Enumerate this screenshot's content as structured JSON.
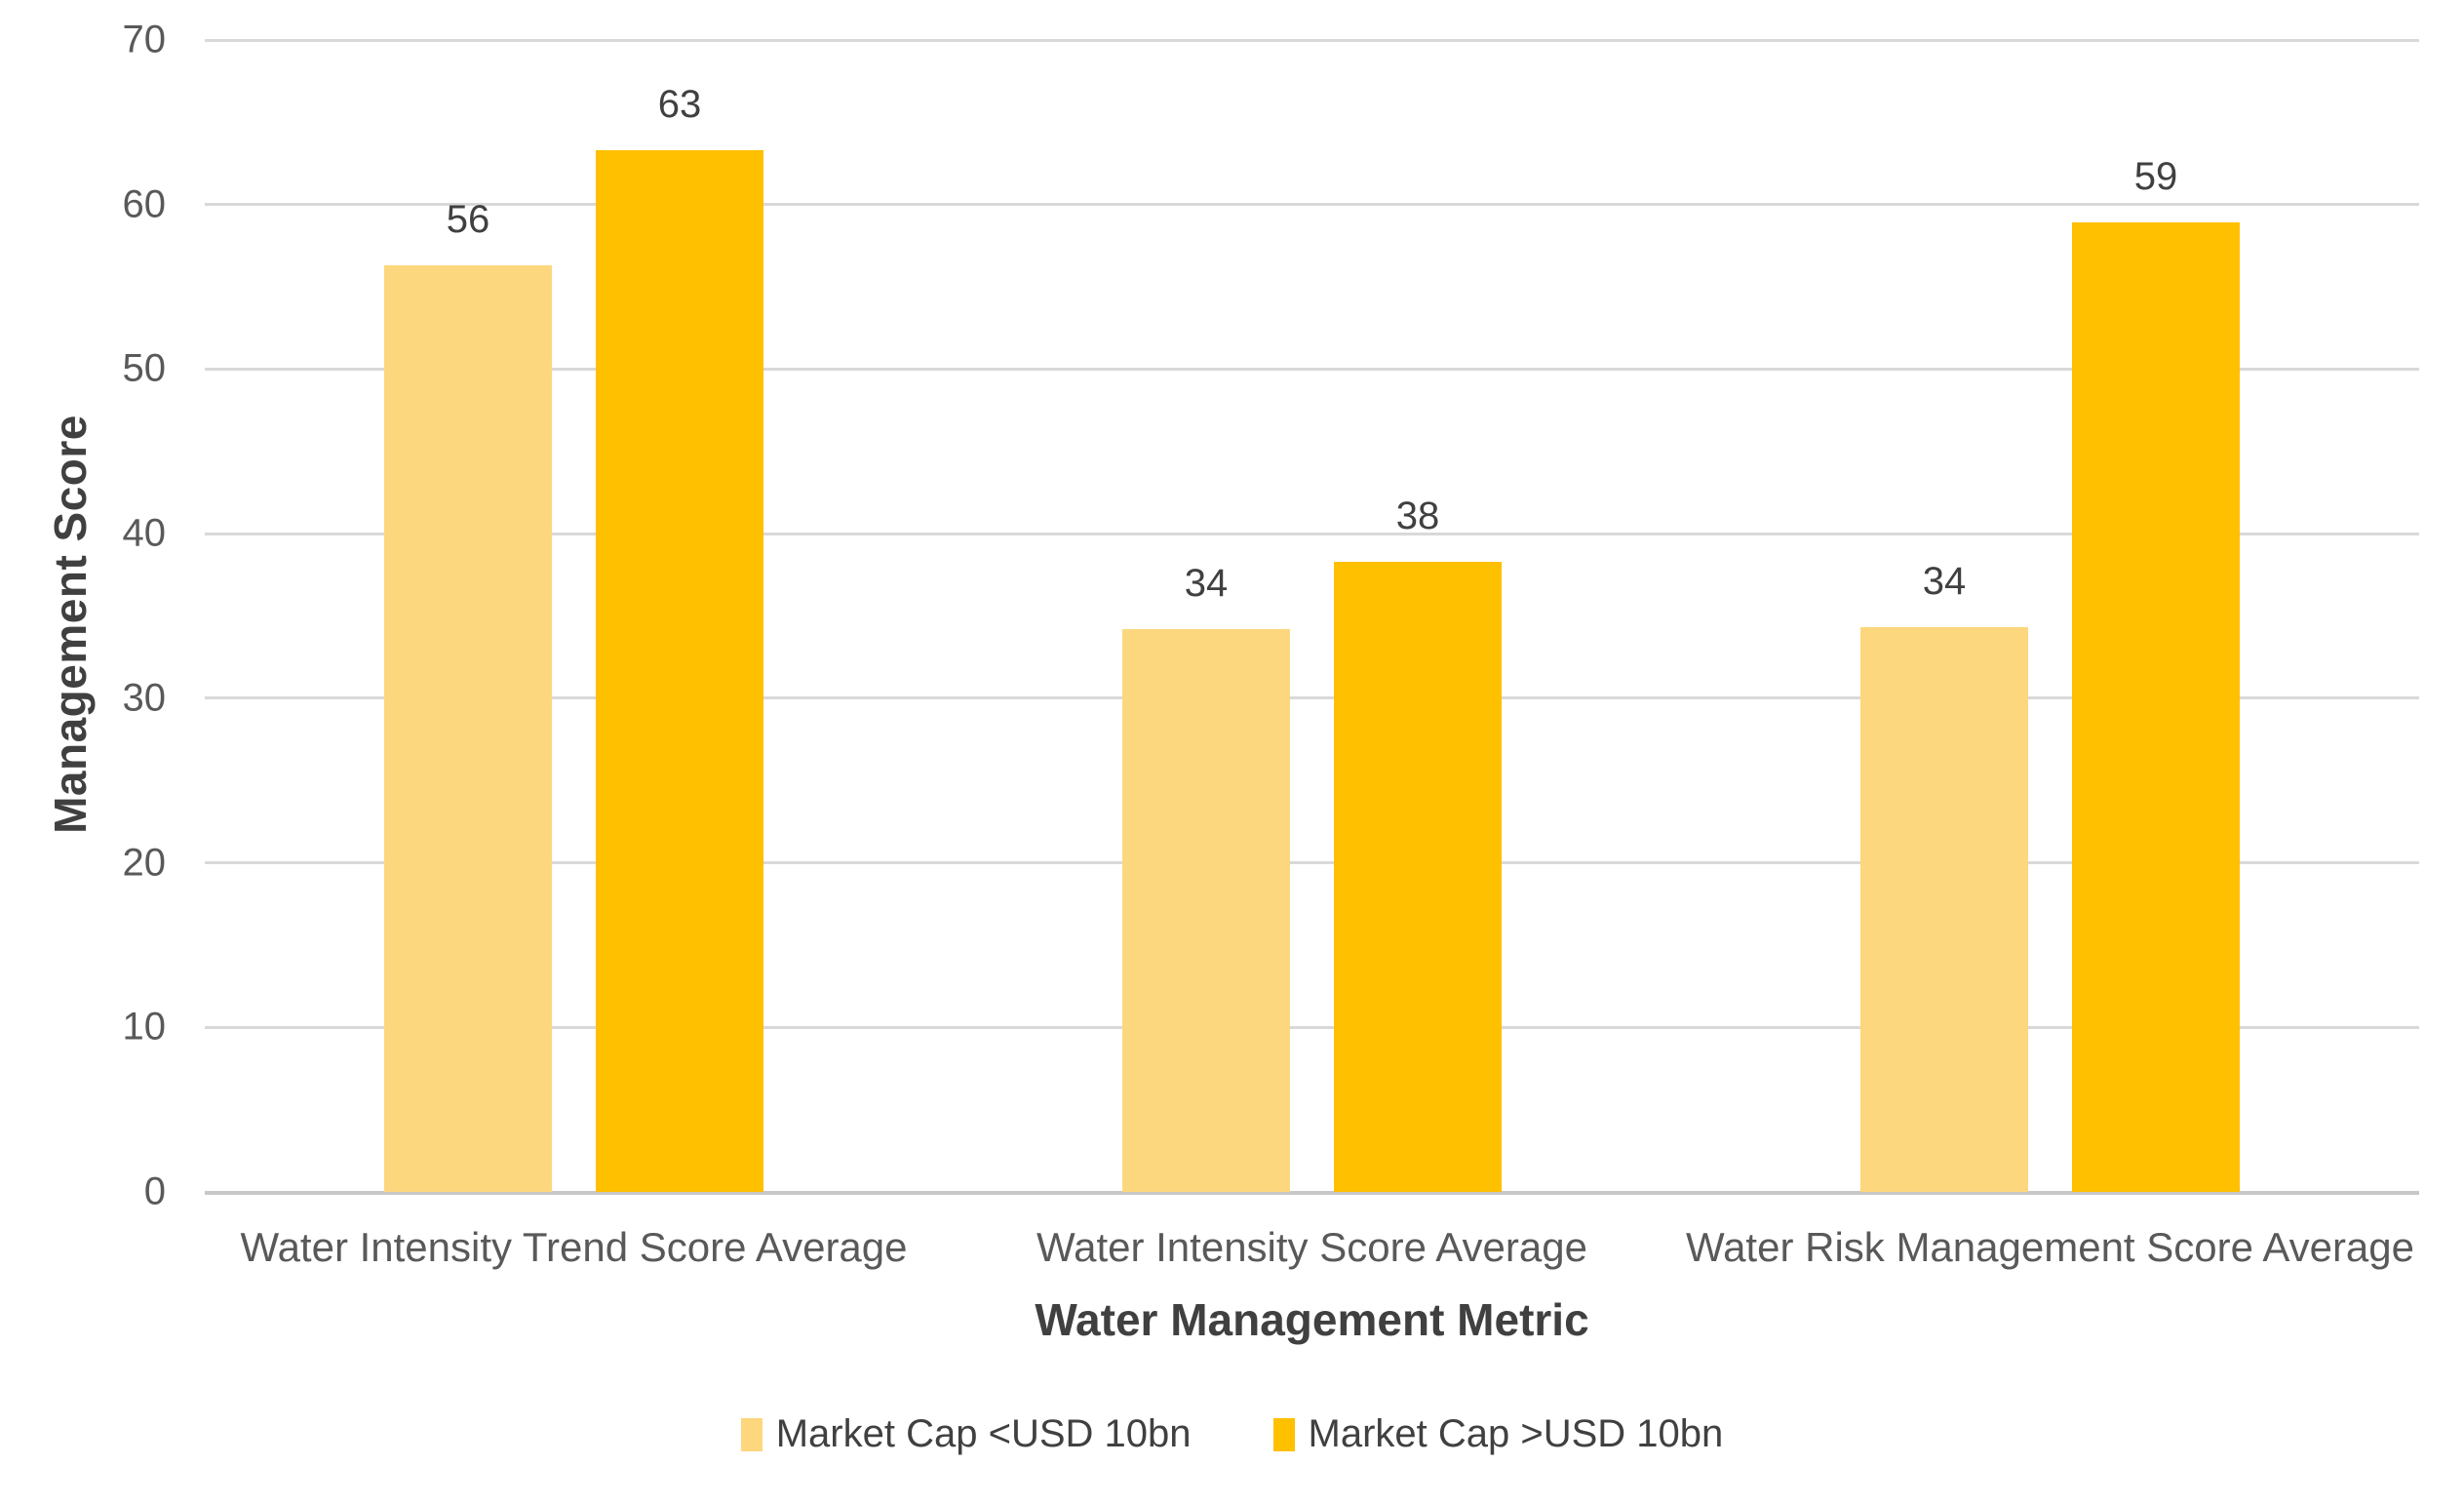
{
  "chart_data": {
    "type": "bar",
    "title": "",
    "xlabel": "Water Management Metric",
    "ylabel": "Management Score",
    "categories": [
      "Water Intensity Trend Score Average",
      "Water Intensity Score Average",
      "Water Risk Management Score Average"
    ],
    "series": [
      {
        "name": "Market Cap <USD 10bn",
        "color": "#FDD77E",
        "values": [
          56,
          34,
          34
        ],
        "values_precise": [
          56.3,
          34.2,
          34.3
        ]
      },
      {
        "name": "Market Cap >USD 10bn",
        "color": "#FFC000",
        "values": [
          63,
          38,
          59
        ],
        "values_precise": [
          63.3,
          38.3,
          58.9
        ]
      }
    ],
    "ylim": [
      0,
      70
    ],
    "yticks": [
      0,
      10,
      20,
      30,
      40,
      50,
      60,
      70
    ],
    "grid": "horizontal",
    "gridline_color": "#d9d9d9",
    "axis_line_color": "#c9c7c7",
    "data_labels": true,
    "legend_position": "bottom"
  }
}
